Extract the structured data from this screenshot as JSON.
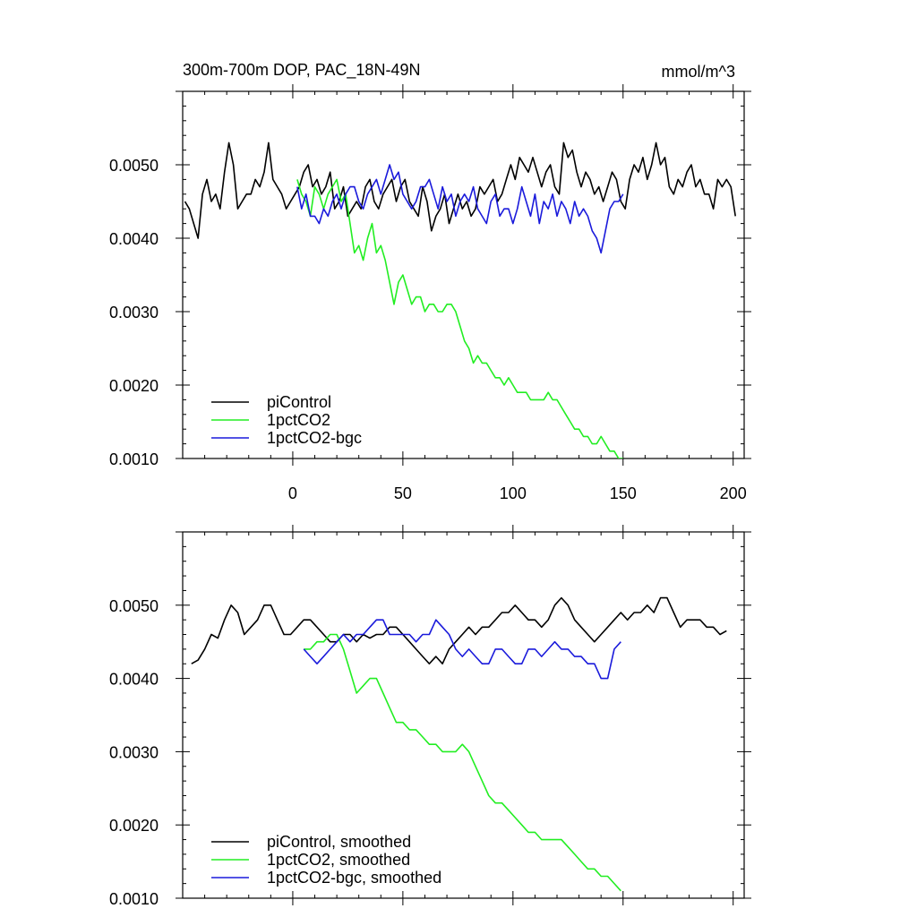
{
  "page": {
    "title": "300m-700m DOP, PAC_18N-49N",
    "units": "mmol/m^3"
  },
  "chart_data": [
    {
      "type": "line",
      "panel": "top",
      "title": "300m-700m DOP, PAC_18N-49N",
      "units_label": "mmol/m^3",
      "xlim": [
        -50,
        205
      ],
      "ylim": [
        0.001,
        0.006
      ],
      "x_ticks": [
        0,
        50,
        100,
        150,
        200
      ],
      "x_tick_labels": [
        "0",
        "50",
        "100",
        "150",
        "200"
      ],
      "y_ticks": [
        0.001,
        0.002,
        0.003,
        0.004,
        0.005
      ],
      "y_tick_labels": [
        "0.0010",
        "0.0020",
        "0.0030",
        "0.0040",
        "0.0050"
      ],
      "legend_position": "bottom-left",
      "series": [
        {
          "name": "piControl",
          "color": "#000000",
          "x": [
            -49,
            -47,
            -45,
            -43,
            -41,
            -39,
            -37,
            -35,
            -33,
            -31,
            -29,
            -27,
            -25,
            -23,
            -21,
            -19,
            -17,
            -15,
            -13,
            -11,
            -9,
            -7,
            -5,
            -3,
            -1,
            1,
            3,
            5,
            7,
            9,
            11,
            13,
            15,
            17,
            19,
            21,
            23,
            25,
            27,
            29,
            31,
            33,
            35,
            37,
            39,
            41,
            43,
            45,
            47,
            49,
            51,
            53,
            55,
            57,
            59,
            61,
            63,
            65,
            67,
            69,
            71,
            73,
            75,
            77,
            79,
            81,
            83,
            85,
            87,
            89,
            91,
            93,
            95,
            97,
            99,
            101,
            103,
            105,
            107,
            109,
            111,
            113,
            115,
            117,
            119,
            121,
            123,
            125,
            127,
            129,
            131,
            133,
            135,
            137,
            139,
            141,
            143,
            145,
            147,
            149,
            151,
            153,
            155,
            157,
            159,
            161,
            163,
            165,
            167,
            169,
            171,
            173,
            175,
            177,
            179,
            181,
            183,
            185,
            187,
            189,
            191,
            193,
            195,
            197,
            199,
            201
          ],
          "y": [
            0.0045,
            0.0044,
            0.0042,
            0.004,
            0.0046,
            0.0048,
            0.0045,
            0.0046,
            0.0044,
            0.0049,
            0.0053,
            0.005,
            0.0044,
            0.0045,
            0.0046,
            0.0046,
            0.0048,
            0.0047,
            0.0049,
            0.0053,
            0.0048,
            0.0047,
            0.0046,
            0.0044,
            0.0045,
            0.0046,
            0.0047,
            0.0049,
            0.005,
            0.0047,
            0.0048,
            0.0046,
            0.0047,
            0.0049,
            0.0044,
            0.0045,
            0.0047,
            0.0043,
            0.0044,
            0.0045,
            0.0044,
            0.0047,
            0.0048,
            0.0045,
            0.0044,
            0.0046,
            0.0047,
            0.0048,
            0.0045,
            0.0047,
            0.0048,
            0.0045,
            0.0044,
            0.0043,
            0.0047,
            0.0045,
            0.0041,
            0.0043,
            0.0044,
            0.0046,
            0.0042,
            0.0044,
            0.0046,
            0.0044,
            0.0045,
            0.0043,
            0.0044,
            0.0047,
            0.0046,
            0.0047,
            0.0048,
            0.0045,
            0.0046,
            0.0048,
            0.005,
            0.0048,
            0.0051,
            0.005,
            0.0049,
            0.0051,
            0.0049,
            0.0047,
            0.0049,
            0.005,
            0.0047,
            0.0046,
            0.0053,
            0.0051,
            0.0052,
            0.0049,
            0.0047,
            0.0049,
            0.0048,
            0.0046,
            0.0047,
            0.0045,
            0.0047,
            0.0049,
            0.0048,
            0.0045,
            0.0044,
            0.0048,
            0.005,
            0.0049,
            0.0051,
            0.0048,
            0.005,
            0.0053,
            0.005,
            0.0051,
            0.0047,
            0.0046,
            0.0048,
            0.0047,
            0.0049,
            0.005,
            0.0047,
            0.0048,
            0.0046,
            0.0046,
            0.0044,
            0.0048,
            0.0047,
            0.0048,
            0.0047,
            0.0043
          ]
        },
        {
          "name": "1pctCO2",
          "color": "#22ee22",
          "x": [
            2,
            4,
            6,
            8,
            10,
            12,
            14,
            16,
            18,
            20,
            22,
            24,
            26,
            28,
            30,
            32,
            34,
            36,
            38,
            40,
            42,
            44,
            46,
            48,
            50,
            52,
            54,
            56,
            58,
            60,
            62,
            64,
            66,
            68,
            70,
            72,
            74,
            76,
            78,
            80,
            82,
            84,
            86,
            88,
            90,
            92,
            94,
            96,
            98,
            100,
            102,
            104,
            106,
            108,
            110,
            112,
            114,
            116,
            118,
            120,
            122,
            124,
            126,
            128,
            130,
            132,
            134,
            136,
            138,
            140,
            142,
            144,
            146,
            148,
            150
          ],
          "y": [
            0.0048,
            0.0046,
            0.0045,
            0.0043,
            0.0047,
            0.0046,
            0.0044,
            0.0046,
            0.0047,
            0.0048,
            0.0045,
            0.0046,
            0.0042,
            0.0038,
            0.0039,
            0.0037,
            0.004,
            0.0042,
            0.0038,
            0.0039,
            0.0037,
            0.0034,
            0.0031,
            0.0034,
            0.0035,
            0.0033,
            0.0031,
            0.0032,
            0.0032,
            0.003,
            0.0031,
            0.0031,
            0.003,
            0.003,
            0.0031,
            0.0031,
            0.003,
            0.0028,
            0.0026,
            0.0025,
            0.0023,
            0.0024,
            0.0023,
            0.0023,
            0.0022,
            0.0021,
            0.0021,
            0.002,
            0.0021,
            0.002,
            0.0019,
            0.0019,
            0.0019,
            0.0018,
            0.0018,
            0.0018,
            0.0018,
            0.0019,
            0.0018,
            0.0018,
            0.0017,
            0.0016,
            0.0015,
            0.0014,
            0.0014,
            0.0013,
            0.0013,
            0.0012,
            0.0012,
            0.0013,
            0.0012,
            0.0011,
            0.0011,
            0.001,
            0.001
          ]
        },
        {
          "name": "1pctCO2-bgc",
          "color": "#1a1adb",
          "x": [
            2,
            4,
            6,
            8,
            10,
            12,
            14,
            16,
            18,
            20,
            22,
            24,
            26,
            28,
            30,
            32,
            34,
            36,
            38,
            40,
            42,
            44,
            46,
            48,
            50,
            52,
            54,
            56,
            58,
            60,
            62,
            64,
            66,
            68,
            70,
            72,
            74,
            76,
            78,
            80,
            82,
            84,
            86,
            88,
            90,
            92,
            94,
            96,
            98,
            100,
            102,
            104,
            106,
            108,
            110,
            112,
            114,
            116,
            118,
            120,
            122,
            124,
            126,
            128,
            130,
            132,
            134,
            136,
            138,
            140,
            142,
            144,
            146,
            148,
            150
          ],
          "y": [
            0.0047,
            0.0044,
            0.0046,
            0.0043,
            0.0043,
            0.0042,
            0.0044,
            0.0043,
            0.0045,
            0.0046,
            0.0044,
            0.0046,
            0.0047,
            0.0047,
            0.0045,
            0.0044,
            0.0046,
            0.0047,
            0.0048,
            0.0046,
            0.0048,
            0.005,
            0.0048,
            0.0049,
            0.0046,
            0.0045,
            0.0044,
            0.0045,
            0.0047,
            0.0047,
            0.0048,
            0.0046,
            0.0044,
            0.0047,
            0.0045,
            0.0046,
            0.0043,
            0.0045,
            0.0046,
            0.0045,
            0.0047,
            0.0044,
            0.0043,
            0.0042,
            0.0045,
            0.0046,
            0.0043,
            0.0044,
            0.0044,
            0.0042,
            0.0044,
            0.0047,
            0.0045,
            0.0043,
            0.0046,
            0.0042,
            0.0045,
            0.0044,
            0.0046,
            0.0043,
            0.0045,
            0.0044,
            0.0042,
            0.0045,
            0.0043,
            0.0044,
            0.0043,
            0.0041,
            0.004,
            0.0038,
            0.0041,
            0.0044,
            0.0045,
            0.0045,
            0.0046
          ]
        }
      ]
    },
    {
      "type": "line",
      "panel": "bottom",
      "xlim": [
        -50,
        205
      ],
      "ylim": [
        0.001,
        0.006
      ],
      "x_ticks": [
        0,
        50,
        100,
        150,
        200
      ],
      "y_ticks": [
        0.001,
        0.002,
        0.003,
        0.004,
        0.005
      ],
      "y_tick_labels": [
        "0.0010",
        "0.0020",
        "0.0030",
        "0.0040",
        "0.0050"
      ],
      "legend_position": "bottom-left",
      "series": [
        {
          "name": "piControl, smoothed",
          "color": "#000000",
          "x": [
            -46,
            -43,
            -40,
            -37,
            -34,
            -31,
            -28,
            -25,
            -22,
            -19,
            -16,
            -13,
            -10,
            -7,
            -4,
            -1,
            2,
            5,
            8,
            11,
            14,
            17,
            20,
            23,
            26,
            29,
            32,
            35,
            38,
            41,
            44,
            47,
            50,
            53,
            56,
            59,
            62,
            65,
            68,
            71,
            74,
            77,
            80,
            83,
            86,
            89,
            92,
            95,
            98,
            101,
            104,
            107,
            110,
            113,
            116,
            119,
            122,
            125,
            128,
            131,
            134,
            137,
            140,
            143,
            146,
            149,
            152,
            155,
            158,
            161,
            164,
            167,
            170,
            173,
            176,
            179,
            182,
            185,
            188,
            191,
            194,
            197
          ],
          "y": [
            0.0042,
            0.00425,
            0.0044,
            0.0046,
            0.00455,
            0.0048,
            0.005,
            0.0049,
            0.0046,
            0.0047,
            0.0048,
            0.005,
            0.005,
            0.0048,
            0.0046,
            0.0046,
            0.0047,
            0.0048,
            0.0048,
            0.0047,
            0.0046,
            0.0045,
            0.0045,
            0.0046,
            0.0046,
            0.0045,
            0.0046,
            0.00455,
            0.0046,
            0.0046,
            0.0047,
            0.0047,
            0.0046,
            0.0045,
            0.0044,
            0.0043,
            0.0042,
            0.0043,
            0.0042,
            0.0044,
            0.0045,
            0.0046,
            0.0047,
            0.0046,
            0.0047,
            0.0047,
            0.0048,
            0.0049,
            0.0049,
            0.005,
            0.0049,
            0.0048,
            0.0048,
            0.0047,
            0.0048,
            0.005,
            0.0051,
            0.005,
            0.0048,
            0.0047,
            0.0046,
            0.0045,
            0.0046,
            0.0047,
            0.0048,
            0.0049,
            0.0048,
            0.0049,
            0.0049,
            0.005,
            0.0049,
            0.0051,
            0.0051,
            0.0049,
            0.0047,
            0.0048,
            0.0048,
            0.0048,
            0.0047,
            0.0047,
            0.0046,
            0.00465
          ]
        },
        {
          "name": "1pctCO2, smoothed",
          "color": "#22ee22",
          "x": [
            5,
            8,
            11,
            14,
            17,
            20,
            23,
            26,
            29,
            32,
            35,
            38,
            41,
            44,
            47,
            50,
            53,
            56,
            59,
            62,
            65,
            68,
            71,
            74,
            77,
            80,
            83,
            86,
            89,
            92,
            95,
            98,
            101,
            104,
            107,
            110,
            113,
            116,
            119,
            122,
            125,
            128,
            131,
            134,
            137,
            140,
            143,
            146,
            149
          ],
          "y": [
            0.0044,
            0.0044,
            0.0045,
            0.0045,
            0.0046,
            0.0046,
            0.0044,
            0.0041,
            0.0038,
            0.0039,
            0.004,
            0.004,
            0.0038,
            0.0036,
            0.0034,
            0.0034,
            0.0033,
            0.0033,
            0.0032,
            0.0031,
            0.0031,
            0.003,
            0.003,
            0.003,
            0.0031,
            0.003,
            0.0028,
            0.0026,
            0.0024,
            0.0023,
            0.0023,
            0.0022,
            0.0021,
            0.002,
            0.0019,
            0.0019,
            0.0018,
            0.0018,
            0.0018,
            0.0018,
            0.0017,
            0.0016,
            0.0015,
            0.0014,
            0.0014,
            0.0013,
            0.0013,
            0.0012,
            0.0011
          ]
        },
        {
          "name": "1pctCO2-bgc, smoothed",
          "color": "#1a1adb",
          "x": [
            5,
            8,
            11,
            14,
            17,
            20,
            23,
            26,
            29,
            32,
            35,
            38,
            41,
            44,
            47,
            50,
            53,
            56,
            59,
            62,
            65,
            68,
            71,
            74,
            77,
            80,
            83,
            86,
            89,
            92,
            95,
            98,
            101,
            104,
            107,
            110,
            113,
            116,
            119,
            122,
            125,
            128,
            131,
            134,
            137,
            140,
            143,
            146,
            149
          ],
          "y": [
            0.0044,
            0.0043,
            0.0042,
            0.0043,
            0.0044,
            0.0045,
            0.0046,
            0.0045,
            0.0046,
            0.0046,
            0.0047,
            0.0048,
            0.0048,
            0.0046,
            0.0046,
            0.0046,
            0.0046,
            0.0045,
            0.0046,
            0.0046,
            0.0048,
            0.0047,
            0.0046,
            0.0044,
            0.0043,
            0.0044,
            0.0043,
            0.0042,
            0.0042,
            0.0044,
            0.0044,
            0.0043,
            0.0042,
            0.0042,
            0.0044,
            0.0044,
            0.0043,
            0.0044,
            0.0045,
            0.0044,
            0.0044,
            0.0043,
            0.0043,
            0.0042,
            0.0042,
            0.004,
            0.004,
            0.0044,
            0.0045
          ]
        }
      ]
    }
  ]
}
